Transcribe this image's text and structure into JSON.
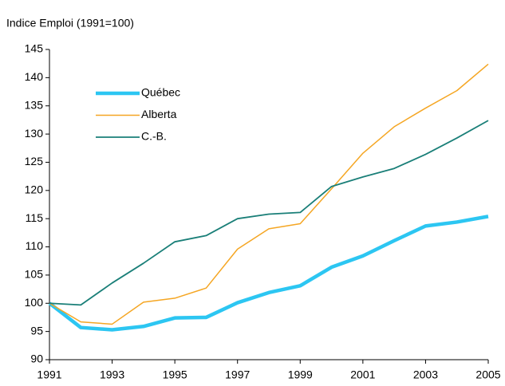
{
  "chart_data": {
    "type": "line",
    "title": "Indice Emploi (1991=100)",
    "x": [
      1991,
      1992,
      1993,
      1994,
      1995,
      1996,
      1997,
      1998,
      1999,
      2000,
      2001,
      2002,
      2003,
      2004,
      2005
    ],
    "series": [
      {
        "name": "Québec",
        "color": "#2cc6f2",
        "values": [
          100,
          95.7,
          95.3,
          95.9,
          97.4,
          97.5,
          100.1,
          101.9,
          103.1,
          106.4,
          108.4,
          111.1,
          113.7,
          114.4,
          115.4
        ]
      },
      {
        "name": "Alberta",
        "color": "#f5a623",
        "values": [
          100,
          96.7,
          96.3,
          100.2,
          100.9,
          102.7,
          109.6,
          113.2,
          114.1,
          120.3,
          126.6,
          131.3,
          134.6,
          137.7,
          142.4
        ]
      },
      {
        "name": "C.-B.",
        "color": "#1a7f78",
        "values": [
          100,
          99.7,
          103.6,
          107.1,
          110.9,
          112.0,
          115.0,
          115.8,
          116.1,
          120.7,
          122.4,
          123.9,
          126.4,
          129.3,
          132.4
        ]
      }
    ],
    "xlim": [
      1991,
      2005
    ],
    "xticks": [
      1991,
      1993,
      1995,
      1997,
      1999,
      2001,
      2003,
      2005
    ],
    "ylim": [
      90,
      145
    ],
    "yticks": [
      90,
      95,
      100,
      105,
      110,
      115,
      120,
      125,
      130,
      135,
      140,
      145
    ],
    "grid": false
  }
}
